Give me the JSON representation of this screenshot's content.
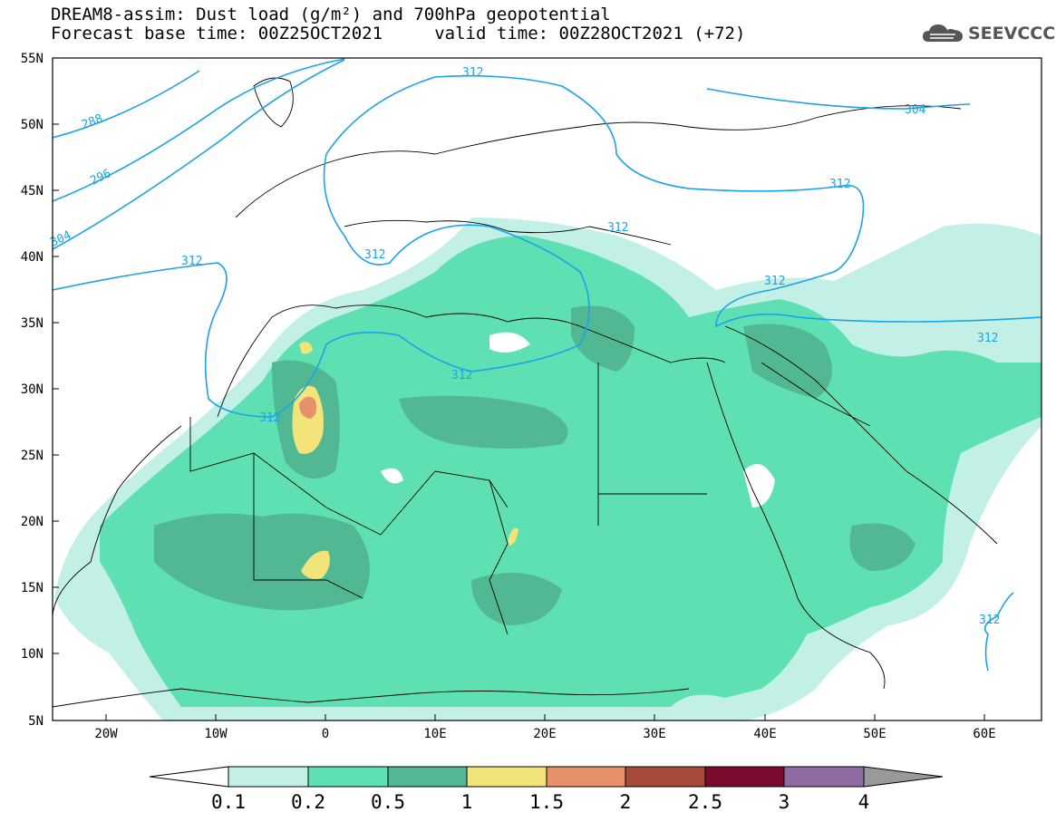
{
  "header": {
    "title_line1": "DREAM8-assim: Dust load (g/m²) and 700hPa geopotential",
    "title_line2": "Forecast base time: 00Z25OCT2021     valid time: 00Z28OCT2021 (+72)",
    "logo_text": "SEEVCCC"
  },
  "map": {
    "lat_labels": [
      "55N",
      "50N",
      "45N",
      "40N",
      "35N",
      "30N",
      "25N",
      "20N",
      "15N",
      "10N",
      "5N"
    ],
    "lon_labels": [
      "20W",
      "10W",
      "0",
      "10E",
      "20E",
      "30E",
      "40E",
      "50E",
      "60E"
    ],
    "contour_labels": [
      "288",
      "296",
      "304",
      "312",
      "312",
      "312",
      "312",
      "312",
      "312",
      "312",
      "312",
      "312",
      "304",
      "312"
    ],
    "contour_color": "#1aa3e8"
  },
  "legend": {
    "ticks": [
      "0.1",
      "0.2",
      "0.5",
      "1",
      "1.5",
      "2",
      "2.5",
      "3",
      "4"
    ],
    "colors": [
      "#c2f0e6",
      "#5ee0b3",
      "#52b893",
      "#f2e479",
      "#e6916a",
      "#a84a3b",
      "#7a0a2e",
      "#8f6ba3",
      "#999999"
    ]
  }
}
